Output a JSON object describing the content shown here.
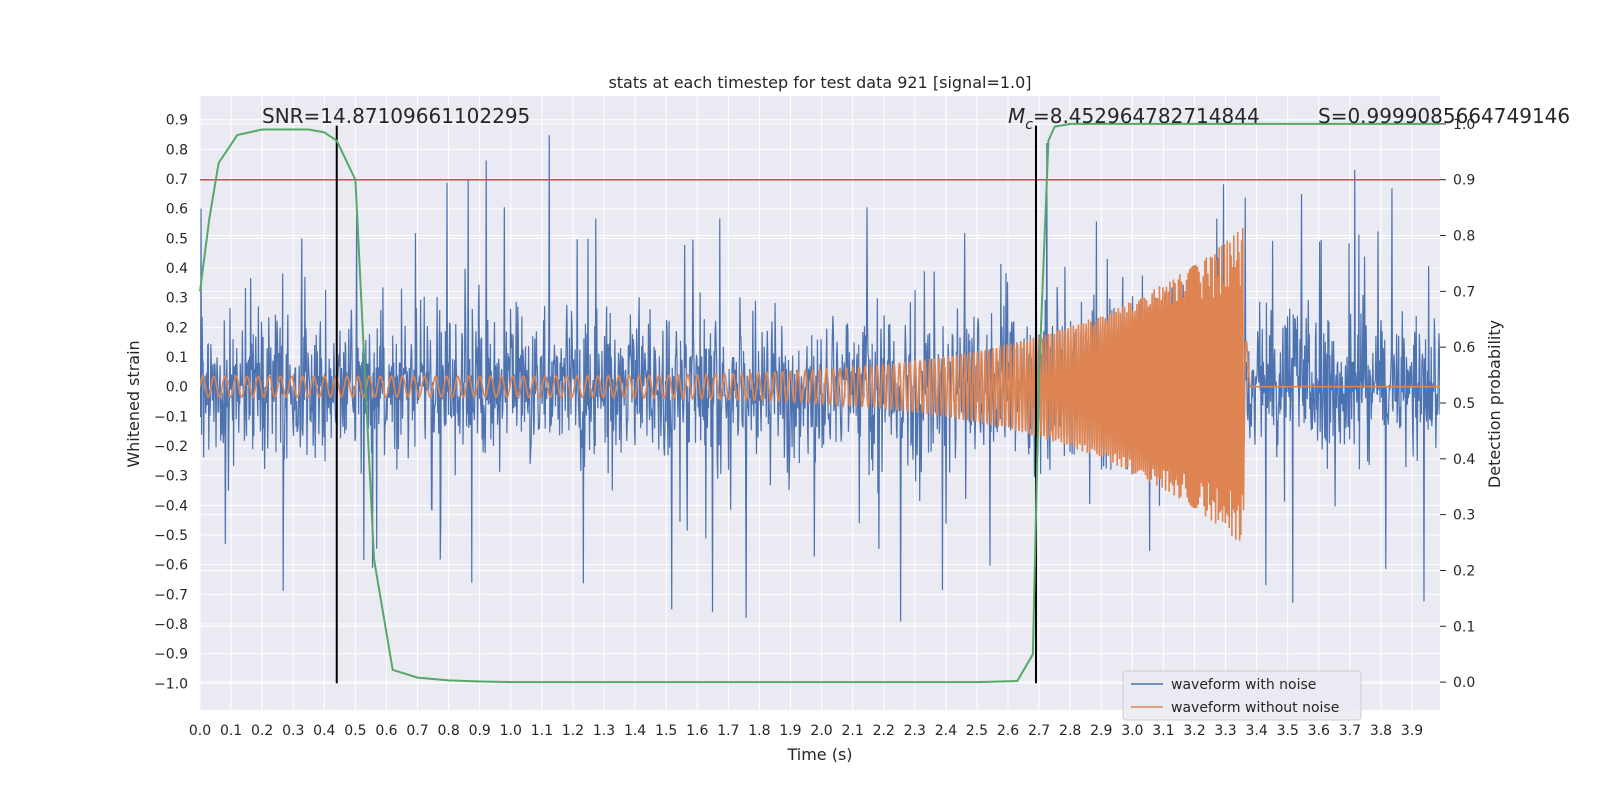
{
  "chart_data": {
    "type": "line",
    "title": "stats at each timestep for test data 921 [signal=1.0]",
    "xlabel": "Time (s)",
    "ylabel": "Whitened strain",
    "y2label": "Detection probability",
    "xlim": [
      0.0,
      3.99
    ],
    "ylim": [
      -1.09,
      0.98
    ],
    "y2lim": [
      -0.05,
      1.05
    ],
    "x_ticks": [
      "0.0",
      "0.1",
      "0.2",
      "0.3",
      "0.4",
      "0.5",
      "0.6",
      "0.7",
      "0.8",
      "0.9",
      "1.0",
      "1.1",
      "1.2",
      "1.3",
      "1.4",
      "1.5",
      "1.6",
      "1.7",
      "1.8",
      "1.9",
      "2.0",
      "2.1",
      "2.2",
      "2.3",
      "2.4",
      "2.5",
      "2.6",
      "2.7",
      "2.8",
      "2.9",
      "3.0",
      "3.1",
      "3.2",
      "3.3",
      "3.4",
      "3.5",
      "3.6",
      "3.7",
      "3.8",
      "3.9"
    ],
    "y_ticks": [
      "0.9",
      "0.8",
      "0.7",
      "0.6",
      "0.5",
      "0.4",
      "0.3",
      "0.2",
      "0.1",
      "0.0",
      "−0.1",
      "−0.2",
      "−0.3",
      "−0.4",
      "−0.5",
      "−0.6",
      "−0.7",
      "−0.8",
      "−0.9",
      "−1.0"
    ],
    "y2_ticks": [
      "1.0",
      "0.9",
      "0.8",
      "0.7",
      "0.6",
      "0.5",
      "0.4",
      "0.3",
      "0.2",
      "0.1",
      "0.0"
    ],
    "grid": true,
    "legend_position": "lower-right",
    "series": [
      {
        "name": "waveform with noise",
        "color": "#4c72b0",
        "description_values": "dense noisy strain, roughly within [-1.0, 0.88]",
        "seed": 921
      },
      {
        "name": "waveform without noise",
        "color": "#dd8452",
        "chirp": {
          "start_amplitude": 0.035,
          "peak_amplitude": 0.54,
          "merger_time": 3.36,
          "start_freq_hz": 28,
          "end_freq_hz": 250
        }
      },
      {
        "name": "",
        "color": "#55a868",
        "axis": "right",
        "x": [
          0.0,
          0.03,
          0.06,
          0.12,
          0.2,
          0.27,
          0.35,
          0.4,
          0.44,
          0.5,
          0.56,
          0.62,
          0.7,
          0.8,
          0.9,
          1.0,
          1.5,
          2.0,
          2.5,
          2.63,
          2.68,
          2.7,
          2.73,
          2.75,
          2.8,
          3.0,
          3.5,
          3.99
        ],
        "y": [
          0.7,
          0.83,
          0.93,
          0.98,
          0.99,
          0.99,
          0.99,
          0.985,
          0.97,
          0.9,
          0.22,
          0.022,
          0.008,
          0.003,
          0.001,
          0.0,
          0.0,
          0.0,
          0.0,
          0.002,
          0.05,
          0.55,
          0.97,
          0.995,
          1.0,
          1.0,
          1.0,
          1.0
        ]
      }
    ],
    "threshold_line": {
      "y2": 0.9,
      "color": "#c44e52"
    },
    "vertical_lines": [
      {
        "x": 0.44,
        "color": "#000000"
      },
      {
        "x": 2.69,
        "color": "#000000"
      }
    ],
    "annotations": {
      "snr": "SNR=14.87109661102295",
      "mc_symbol": "M",
      "mc_sub": "c",
      "mc_value": "=8.452964782714844",
      "s_value": "S=0.9999085664749146"
    }
  }
}
